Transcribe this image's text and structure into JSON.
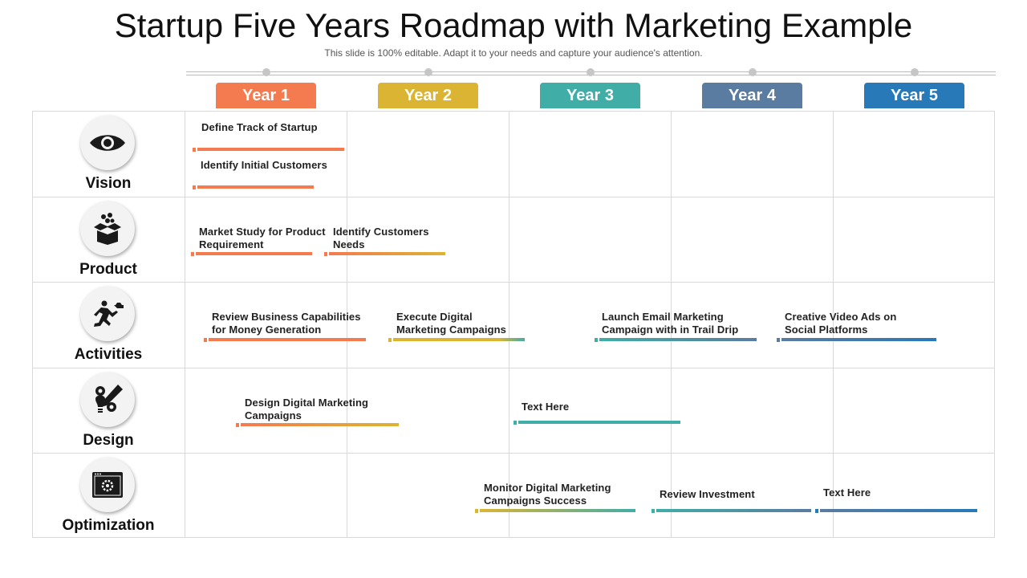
{
  "title": "Startup Five Years Roadmap with Marketing Example",
  "subtitle": "This slide is 100% editable. Adapt it to your needs and capture your audience's attention.",
  "years": [
    {
      "label": "Year 1",
      "color": "#f47a4f"
    },
    {
      "label": "Year 2",
      "color": "#dcb433"
    },
    {
      "label": "Year 3",
      "color": "#41ada7"
    },
    {
      "label": "Year 4",
      "color": "#5a7ca0"
    },
    {
      "label": "Year 5",
      "color": "#2879b8"
    }
  ],
  "rows": [
    {
      "label": "Vision",
      "icon": "eye-icon"
    },
    {
      "label": "Product",
      "icon": "box-icon"
    },
    {
      "label": "Activities",
      "icon": "runner-icon"
    },
    {
      "label": "Design",
      "icon": "design-icon"
    },
    {
      "label": "Optimization",
      "icon": "browser-settings-icon"
    }
  ],
  "tasks": {
    "vision_1": "Define Track of Startup",
    "vision_2": "Identify Initial Customers",
    "product_1": "Market Study for Product Requirement",
    "product_2": "Identify Customers Needs",
    "activities_1": "Review Business  Capabilities for Money Generation",
    "activities_2": "Execute Digital Marketing Campaigns",
    "activities_3": "Launch Email Marketing Campaign with in Trail Drip",
    "activities_4": "Creative Video Ads on Social Platforms",
    "design_1": "Design Digital Marketing Campaigns",
    "design_2": "Text Here",
    "optimization_1": "Monitor Digital Marketing Campaigns Success",
    "optimization_2": "Review Investment",
    "optimization_3": "Text Here"
  }
}
